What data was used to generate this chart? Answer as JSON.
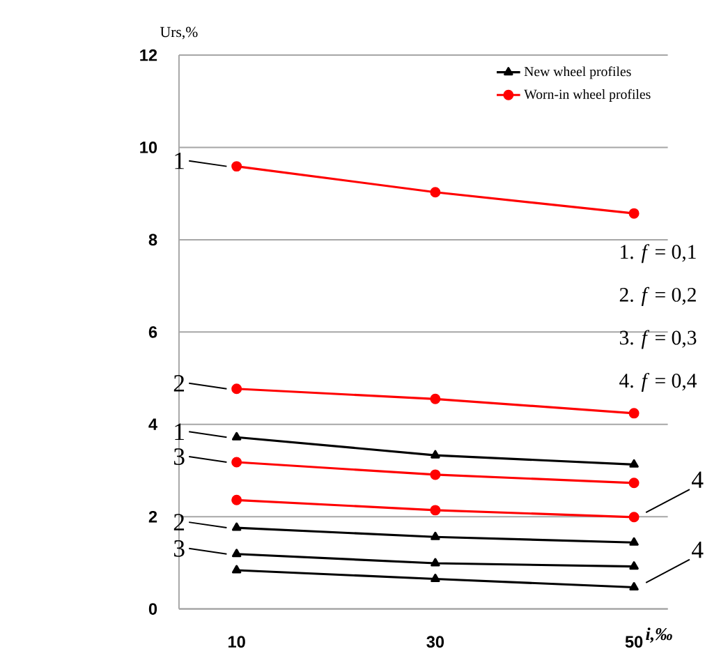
{
  "chart_data": {
    "type": "line",
    "xlabel": "i,‰",
    "ylabel": "Urs,%",
    "categories": [
      "10",
      "30",
      "50"
    ],
    "ylim": [
      0,
      12
    ],
    "yticks": [
      0,
      2,
      4,
      6,
      8,
      10,
      12
    ],
    "grid": "y",
    "legend": "top right",
    "series": [
      {
        "name": "New wheel profiles",
        "color": "#000000",
        "marker": "triangle",
        "values": [
          3.72,
          3.33,
          3.13
        ]
      },
      {
        "color": "#000000",
        "marker": "triangle",
        "values": [
          1.76,
          1.56,
          1.44
        ]
      },
      {
        "color": "#000000",
        "marker": "triangle",
        "values": [
          1.19,
          0.99,
          0.92
        ]
      },
      {
        "color": "#000000",
        "marker": "triangle",
        "values": [
          0.84,
          0.65,
          0.47
        ]
      },
      {
        "name": "Worn-in wheel profiles",
        "color": "#ff0000",
        "marker": "circle",
        "values": [
          9.59,
          9.03,
          8.57
        ]
      },
      {
        "color": "#ff0000",
        "marker": "circle",
        "values": [
          4.77,
          4.55,
          4.24
        ]
      },
      {
        "color": "#ff0000",
        "marker": "circle",
        "values": [
          3.18,
          2.91,
          2.73
        ]
      },
      {
        "color": "#ff0000",
        "marker": "circle",
        "values": [
          2.36,
          2.14,
          1.99
        ]
      }
    ],
    "annotations": [
      {
        "text": "1",
        "x": "10",
        "y": 9.59
      },
      {
        "text": "2",
        "x": "10",
        "y": 4.77
      },
      {
        "text": "1",
        "x": "10",
        "y": 3.72
      },
      {
        "text": "3",
        "x": "10",
        "y": 3.18
      },
      {
        "text": "4",
        "x": "50",
        "y": 1.99
      },
      {
        "text": "2",
        "x": "10",
        "y": 1.76
      },
      {
        "text": "3",
        "x": "10",
        "y": 1.19
      },
      {
        "text": "4",
        "x": "50",
        "y": 0.47
      },
      "1.   *f* = 0,1",
      "2.   *f* = 0,2",
      "3.   *f* = 0,3",
      "4.   *f* = 0,4"
    ]
  }
}
